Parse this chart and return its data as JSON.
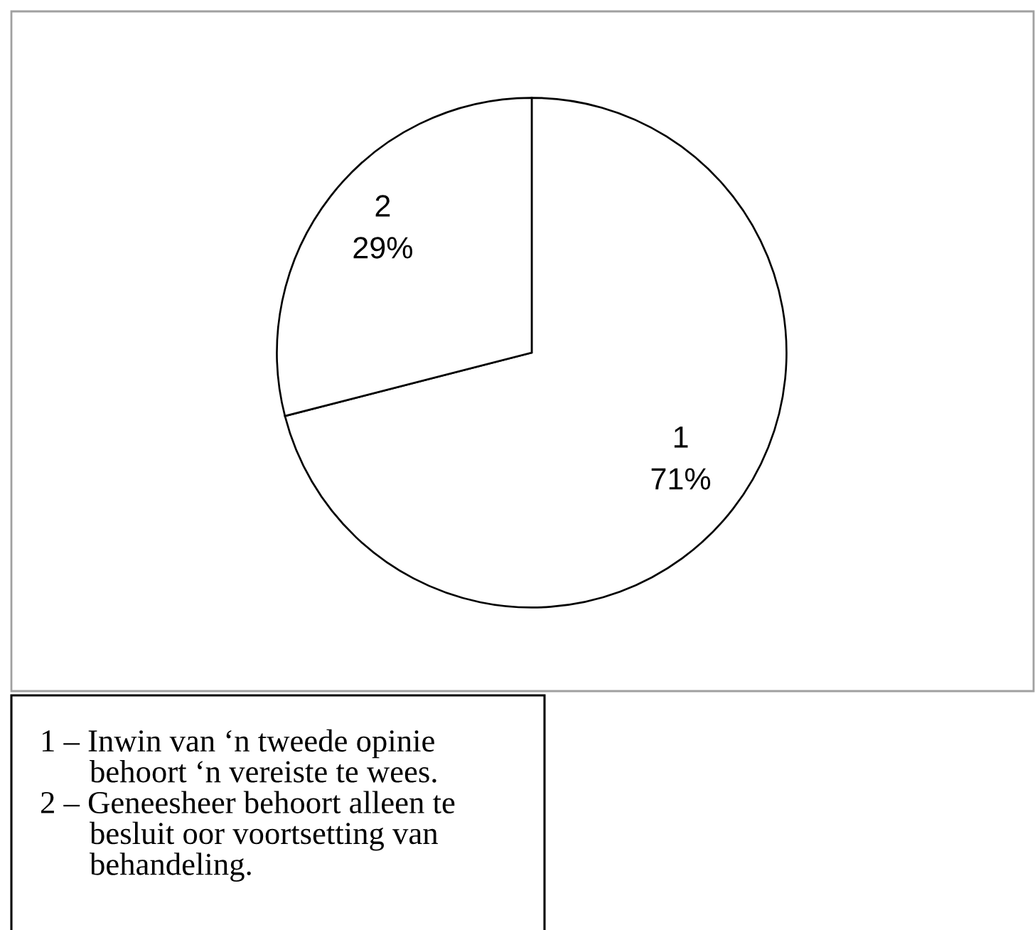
{
  "chart_data": {
    "type": "pie",
    "categories": [
      "1",
      "2"
    ],
    "values": [
      71,
      29
    ],
    "colors": [
      "#ffffff",
      "#ffffff"
    ],
    "value_labels": [
      "71%",
      "29%"
    ],
    "annotations": [
      "1 – Inwin van ‘n tweede opinie\nbehoort ‘n vereiste te wees.",
      "2 – Geneesheer behoort alleen te\nbesluit oor voortsetting van\nbehandeling."
    ]
  }
}
